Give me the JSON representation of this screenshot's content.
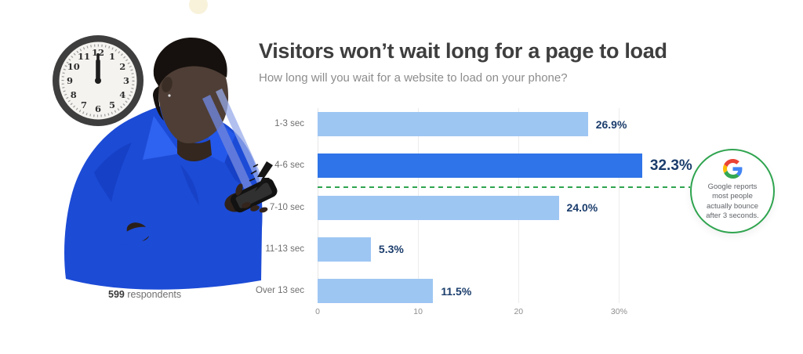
{
  "header": {
    "title": "Visitors won’t wait long for a page to load",
    "subtitle": "How long will you wait for a website to load on your phone?"
  },
  "chart_data": {
    "type": "bar",
    "orientation": "horizontal",
    "title": "Visitors won’t wait long for a page to load",
    "question": "How long will you wait for a website to load on your phone?",
    "categories": [
      "1-3 sec",
      "4-6 sec",
      "7-10 sec",
      "11-13 sec",
      "Over 13 sec"
    ],
    "values": [
      26.9,
      32.3,
      24.0,
      5.3,
      11.5
    ],
    "value_labels": [
      "26.9%",
      "32.3%",
      "24.0%",
      "5.3%",
      "11.5%"
    ],
    "highlight_index": 1,
    "xlim": [
      0,
      37.3
    ],
    "x_ticks": [
      {
        "value": 0,
        "label": "0"
      },
      {
        "value": 10,
        "label": "10"
      },
      {
        "value": 20,
        "label": "20"
      },
      {
        "value": 30,
        "label": "30%"
      }
    ],
    "gridlines": [
      10,
      20,
      30
    ],
    "grid": true,
    "colors": {
      "bar": "#9EC6F3",
      "bar_highlight": "#2F74E8",
      "value_label": "#1B3D6C",
      "category_label": "#6F6F6F",
      "tick_label": "#8E8E8E",
      "gridline": "#ECECEC"
    }
  },
  "annotation": {
    "line_color": "#2FA44F",
    "logo": "google-g-logo",
    "lines": [
      "Google reports",
      "most people",
      "actually bounce",
      "after 3 seconds."
    ]
  },
  "footnote": {
    "bold": "599",
    "rest": " respondents"
  },
  "illustration": {
    "clock_time": "12:00",
    "clock_numbers": [
      "12",
      "1",
      "2",
      "3",
      "4",
      "5",
      "6",
      "7",
      "8",
      "9",
      "10",
      "11"
    ],
    "elements": [
      "wall-clock",
      "man-looking-at-phone",
      "smartphone",
      "lightning-bolt",
      "orange-circle",
      "gaze-beams"
    ]
  }
}
